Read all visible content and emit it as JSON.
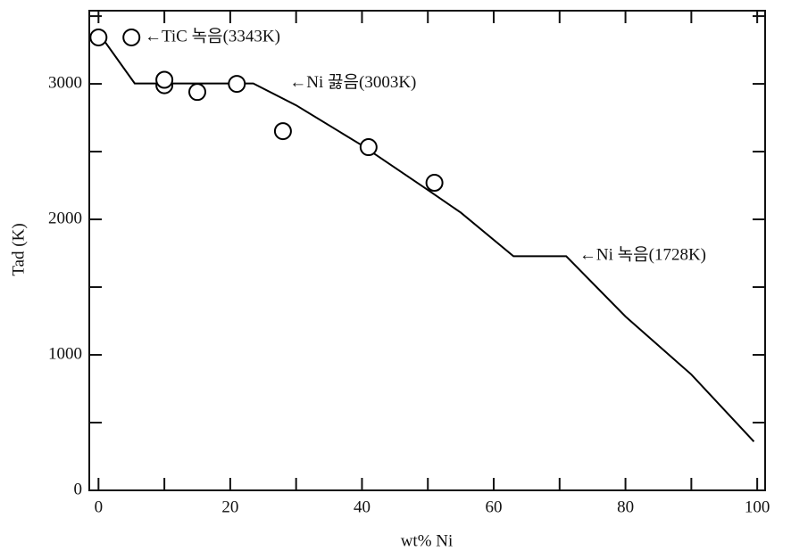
{
  "chart_data": {
    "type": "line",
    "x_label": "wt% Ni",
    "y_label": "Tad (K)",
    "xlim": [
      -1.4,
      101.2
    ],
    "ylim": [
      0,
      3540
    ],
    "xticks": [
      0,
      20,
      40,
      60,
      80,
      100
    ],
    "xminorticks": [
      10,
      30,
      50,
      70,
      90
    ],
    "yticks": [
      0,
      1000,
      2000,
      3000
    ],
    "yminorticks": [
      500,
      1500,
      2500,
      3500
    ],
    "series": [
      {
        "type": "line",
        "color": "#000000",
        "x": [
          0.5,
          5.5,
          23.5,
          30,
          40,
          50,
          55,
          63,
          71,
          80,
          90,
          99.5
        ],
        "values": [
          3343,
          3003,
          3003,
          2842,
          2546,
          2217,
          2050,
          1728,
          1728,
          1283,
          855,
          360
        ]
      },
      {
        "type": "scatter",
        "color": "#000000",
        "x": [
          0,
          5,
          10,
          10,
          15,
          21,
          28,
          41,
          51
        ],
        "values": [
          3343,
          3343,
          2990,
          3030,
          2940,
          3000,
          2651,
          2533,
          2270
        ]
      }
    ],
    "annotations": [
      {
        "text": "←TiC 녹음(3343K)",
        "x": 7,
        "y": 3343
      },
      {
        "text": "←Ni 끓음(3003K)",
        "x": 29,
        "y": 3003
      },
      {
        "text": "←Ni 녹음(1728K)",
        "x": 73,
        "y": 1728
      }
    ]
  }
}
